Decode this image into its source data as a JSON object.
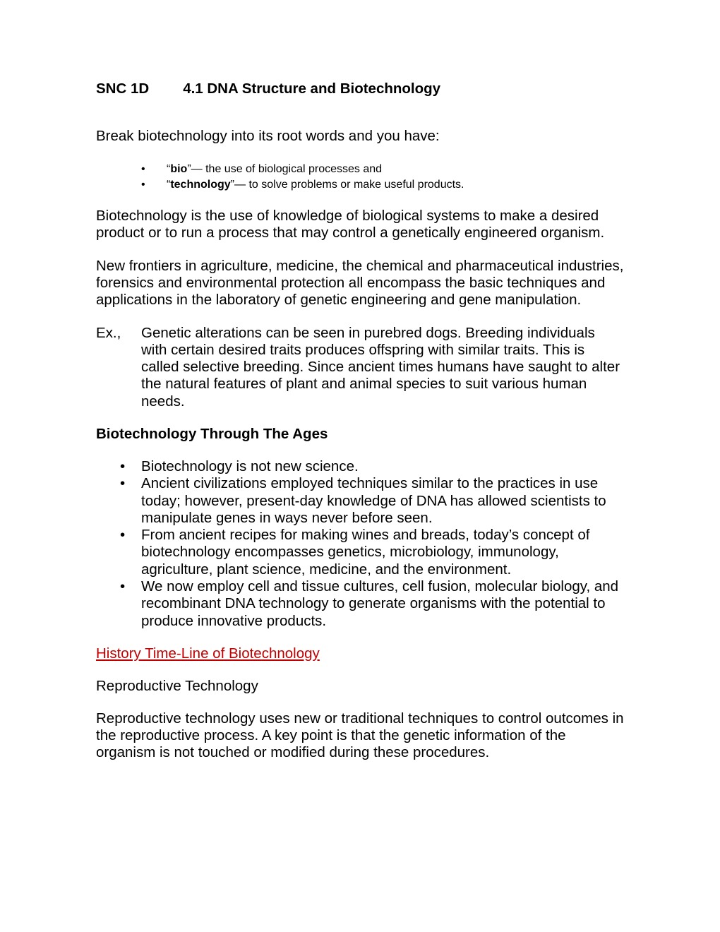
{
  "colors": {
    "text": "#000000",
    "background": "#ffffff",
    "link": "#c00000"
  },
  "title": {
    "course": "SNC 1D",
    "main": "4.1 DNA Structure and Biotechnology"
  },
  "intro_line": "Break biotechnology into its root words and you have:",
  "root_bullets": [
    {
      "pre": "“",
      "term": "bio",
      "post": "”— the use of biological processes and"
    },
    {
      "pre": "“",
      "term": "technology",
      "post": "”— to solve problems or make useful products."
    }
  ],
  "para1": "Biotechnology is the use of knowledge of biological systems to make a desired product or to run a process that may control a genetically engineered organism.",
  "para2": "New frontiers in agriculture, medicine, the chemical and pharmaceutical industries, forensics and environmental protection all encompass the basic techniques and applications in the laboratory of genetic engineering and gene manipulation.",
  "example": {
    "label": "Ex.,",
    "body": "Genetic alterations can be seen in purebred dogs. Breeding individuals with certain desired traits produces offspring with similar traits. This is called selective breeding. Since ancient times humans have saught to alter the natural features of plant and animal species to suit various human needs."
  },
  "subheading": "Biotechnology Through The Ages",
  "ages_bullets": [
    "Biotechnology is not new science.",
    "Ancient civilizations employed techniques similar to the practices in use today; however, present-day knowledge of DNA has allowed scientists to manipulate genes in ways never before seen.",
    "From ancient recipes for making wines and breads, today’s concept of biotechnology encompasses genetics, microbiology, immunology, agriculture, plant science, medicine, and the environment.",
    "We now employ cell and tissue cultures, cell fusion, molecular biology, and recombinant DNA technology to generate organisms with the potential to produce innovative products."
  ],
  "history_link": "History Time-Line of Biotechnology",
  "reproductive_heading": "Reproductive Technology",
  "reproductive_para": "Reproductive technology uses new or traditional techniques to control outcomes in the reproductive process. A key point is that the genetic information of the organism is not touched or modified during these procedures."
}
